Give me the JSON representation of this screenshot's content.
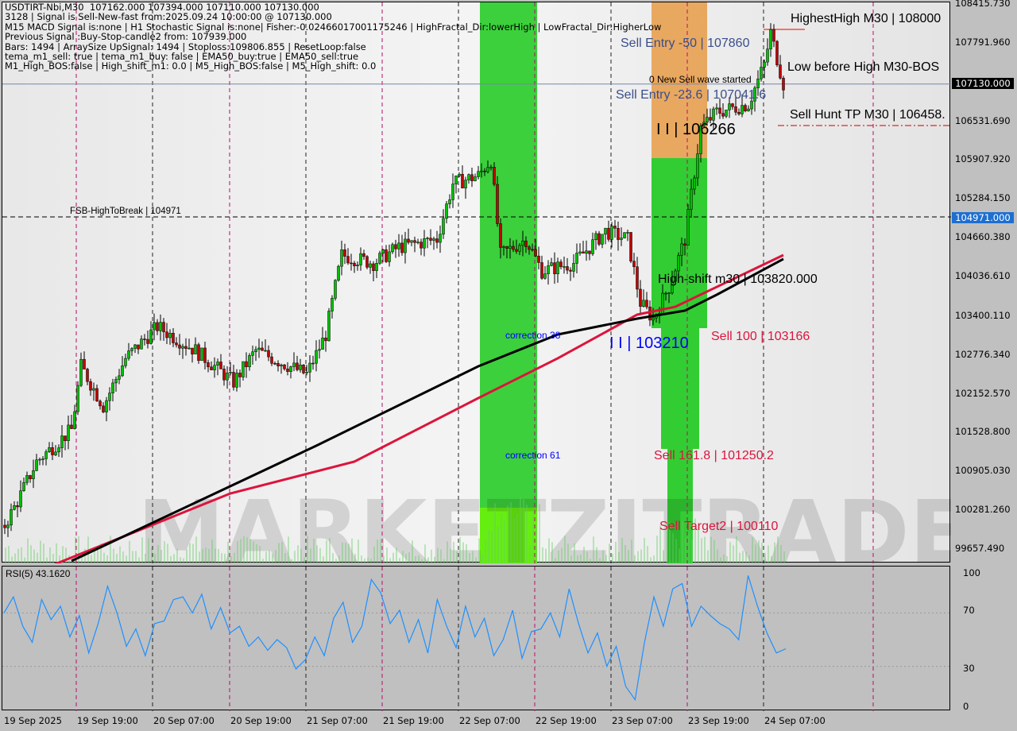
{
  "header": {
    "lines": [
      "USDTIRT-Nbi,M30  107162.000 107394.000 107110.000 107130.000",
      "3128 | Signal is Sell-New-fast from:2025.09.24 10:00:00 @ 107130.000",
      "M15 MACD Signal is:none | H1 Stochastic Signal is:none| Fisher:-0.02466017001175246 | HighFractal_Dir:lowerHigh | LowFractal_Dir:HigherLow",
      "Previous Signal :Buy-Stop-candle2 from: 107939.000",
      "Bars: 1494 | ArraySize UpSignal: 1494 | Stoploss:109806.855 | ResetLoop:false",
      "tema_m1_sell: true | tema_m1_buy: false | EMA50_buy:true | EMA50_sell:true",
      "M1_High_BOS:false | High_shift_m1: 0.0 | M5_High_BOS:false | M5_High_shift: 0.0"
    ]
  },
  "labels": {
    "highest_high": "HighestHigh    M30 | 108000",
    "low_before_high": "Low before High    M30-BOS",
    "sell_hunt": "Sell Hunt TP M30 | 106458.",
    "sell_entry_50": "Sell Entry -50 | 107860",
    "sell_entry_236": "Sell Entry -23.6 | 107041.6",
    "new_sell_wave": "0 New Sell wave started",
    "wave_106266": "I I | 106266",
    "fsb": "FSB-HighToBreak | 104971",
    "high_shift": "High-shift m30 | 103820.000",
    "correction38": "correction 38",
    "correction61": "correction 61",
    "wave_103210": "I I | 103210",
    "sell100": "Sell 100 | 103166",
    "sell1618": "Sell 161.8 | 101250.2",
    "target2": "Sell Target2 | 100110",
    "rsi_title": "RSI(5) 43.1620"
  },
  "colors": {
    "bull": "#00c000",
    "bear": "#c00000",
    "ema_black": "#000000",
    "ema_red": "#dc143c",
    "zone_green": "#32cd32",
    "zone_orange": "#e8a050",
    "rsi": "#1e90ff"
  },
  "chart_data": {
    "type": "candlestick",
    "symbol": "USDTIRT-Nbi",
    "timeframe": "M30",
    "ylim": [
      99657.49,
      108415.73
    ],
    "y_ticks": [
      "108415.730",
      "107791.960",
      "106531.690",
      "105907.920",
      "105284.150",
      "104660.380",
      "104036.610",
      "103400.110",
      "102776.340",
      "102152.570",
      "101528.800",
      "100905.030",
      "100281.260",
      "99657.490"
    ],
    "current_price": "107130.000",
    "marked_level": "104971.000",
    "x_ticks": [
      "19 Sep 2025",
      "19 Sep 19:00",
      "20 Sep 07:00",
      "20 Sep 19:00",
      "21 Sep 07:00",
      "21 Sep 19:00",
      "22 Sep 07:00",
      "22 Sep 19:00",
      "23 Sep 07:00",
      "23 Sep 19:00",
      "24 Sep 07:00"
    ],
    "price_path": [
      [
        "2025-09-19T07:30",
        100041
      ],
      [
        "2025-09-19T09:30",
        100424
      ],
      [
        "2025-09-19T12:30",
        101062
      ],
      [
        "2025-09-19T18:00",
        101573
      ],
      [
        "2025-09-19T19:30",
        102594
      ],
      [
        "2025-09-19T23:00",
        101955
      ],
      [
        "2025-09-20T02:30",
        102722
      ],
      [
        "2025-09-20T07:30",
        103232
      ],
      [
        "2025-09-20T13:30",
        102849
      ],
      [
        "2025-09-20T19:30",
        102339
      ],
      [
        "2025-09-20T23:00",
        102849
      ],
      [
        "2025-09-21T07:00",
        102466
      ],
      [
        "2025-09-21T10:00",
        103105
      ],
      [
        "2025-09-21T12:30",
        104381
      ],
      [
        "2025-09-21T17:30",
        104254
      ],
      [
        "2025-09-21T21:30",
        104509
      ],
      [
        "2025-09-22T03:30",
        104637
      ],
      [
        "2025-09-22T06:00",
        105530
      ],
      [
        "2025-09-22T10:00",
        105658
      ],
      [
        "2025-09-22T12:00",
        105913
      ],
      [
        "2025-09-22T13:30",
        104381
      ],
      [
        "2025-09-22T17:30",
        104637
      ],
      [
        "2025-09-22T20:00",
        104126
      ],
      [
        "2025-09-23T01:00",
        104254
      ],
      [
        "2025-09-23T06:00",
        104764
      ],
      [
        "2025-09-23T09:30",
        104637
      ],
      [
        "2025-09-23T11:30",
        103615
      ],
      [
        "2025-09-23T13:30",
        103360
      ],
      [
        "2025-09-23T16:00",
        103871
      ],
      [
        "2025-09-23T18:30",
        104637
      ],
      [
        "2025-09-23T21:00",
        106424
      ],
      [
        "2025-09-23T23:30",
        106679
      ],
      [
        "2025-09-24T04:30",
        106807
      ],
      [
        "2025-09-24T07:00",
        107445
      ],
      [
        "2025-09-24T08:00",
        107956
      ],
      [
        "2025-09-24T10:00",
        107130
      ]
    ],
    "ema_black": [
      [
        "2025-09-19T18:00",
        99466
      ],
      [
        "2025-09-21T08:30",
        101317
      ],
      [
        "2025-09-22T10:00",
        102594
      ],
      [
        "2025-09-22T22:30",
        103105
      ],
      [
        "2025-09-23T11:00",
        103360
      ],
      [
        "2025-09-23T18:30",
        103488
      ],
      [
        "2025-09-23T23:30",
        103743
      ],
      [
        "2025-09-24T10:00",
        104318
      ]
    ],
    "ema_red": [
      [
        "2025-09-19T14:30",
        99377
      ],
      [
        "2025-09-20T19:00",
        100551
      ],
      [
        "2025-09-21T14:30",
        101062
      ],
      [
        "2025-09-22T10:00",
        102083
      ],
      [
        "2025-09-22T22:30",
        102722
      ],
      [
        "2025-09-23T11:00",
        103424
      ],
      [
        "2025-09-23T17:00",
        103551
      ],
      [
        "2025-09-24T10:00",
        104381
      ]
    ],
    "rsi": {
      "title": "RSI(5)",
      "ylim": [
        0,
        100
      ],
      "y_ticks": [
        "100",
        "70",
        "30",
        "0"
      ],
      "values": [
        70,
        82,
        60,
        48,
        80,
        65,
        75,
        52,
        68,
        40,
        62,
        90,
        70,
        45,
        58,
        38,
        62,
        64,
        80,
        82,
        70,
        84,
        58,
        74,
        55,
        60,
        45,
        52,
        42,
        50,
        44,
        28,
        35,
        52,
        38,
        66,
        78,
        48,
        60,
        95,
        85,
        62,
        72,
        48,
        65,
        40,
        80,
        60,
        44,
        75,
        52,
        66,
        38,
        50,
        72,
        36,
        56,
        58,
        70,
        52,
        88,
        62,
        40,
        55,
        30,
        45,
        15,
        5,
        48,
        82,
        60,
        88,
        92,
        60,
        75,
        68,
        62,
        58,
        50,
        98,
        75,
        55,
        40,
        43.162
      ]
    }
  }
}
